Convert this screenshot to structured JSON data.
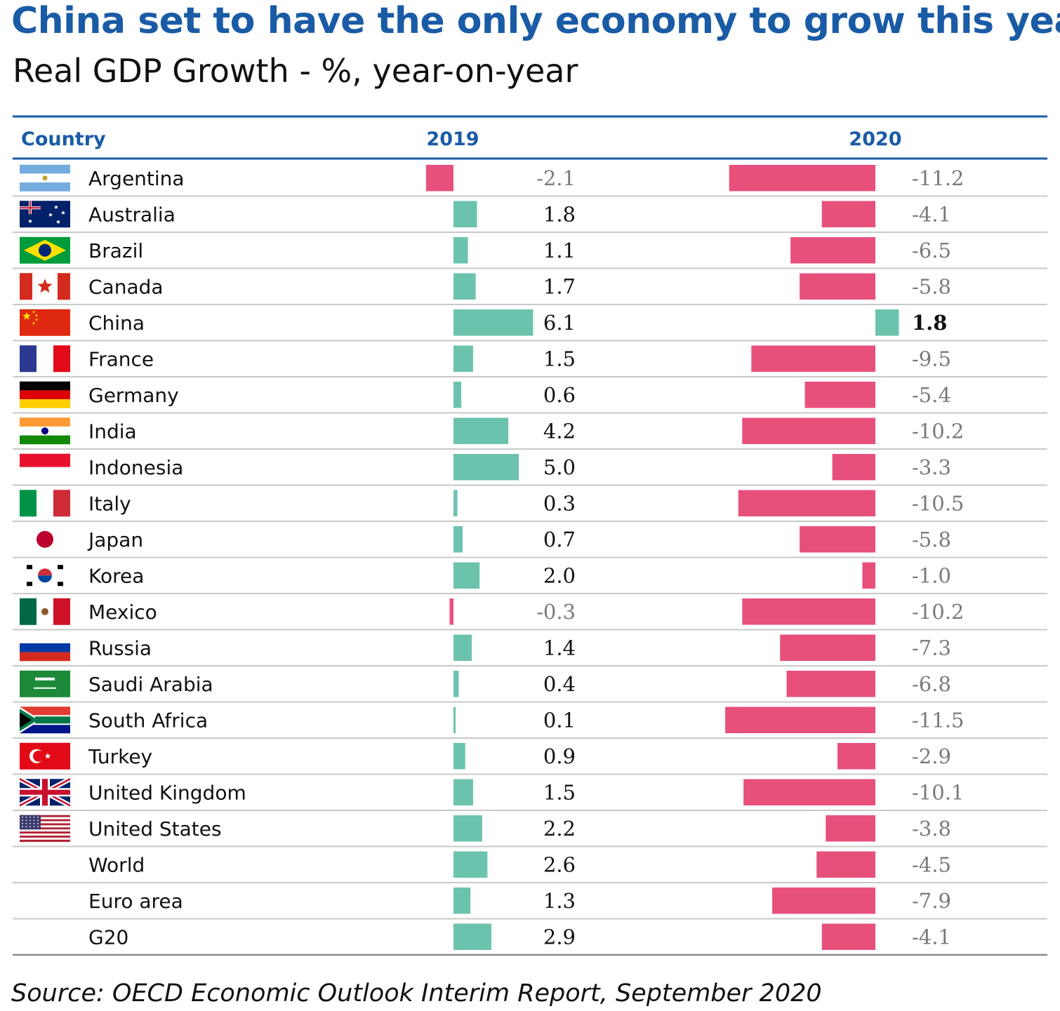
{
  "title": "China set to have the only economy to grow this year",
  "subtitle": "Real GDP Growth - %, year-on-year",
  "source": "Source: OECD Economic Outlook Interim Report, September 2020",
  "colors": {
    "accent": "#1a5ba6",
    "positive_bar": "#6cc3ad",
    "negative_bar": "#e8507c",
    "negative_text": "#7a7a7a",
    "positive_text": "#111111",
    "rule": "#c9c9c9"
  },
  "chart_data": {
    "type": "bar",
    "headers": {
      "country": "Country",
      "y2019": "2019",
      "y2020": "2020"
    },
    "categories": [
      "Argentina",
      "Australia",
      "Brazil",
      "Canada",
      "China",
      "France",
      "Germany",
      "India",
      "Indonesia",
      "Italy",
      "Japan",
      "Korea",
      "Mexico",
      "Russia",
      "Saudi Arabia",
      "South Africa",
      "Turkey",
      "United Kingdom",
      "United States",
      "World",
      "Euro area",
      "G20"
    ],
    "series": [
      {
        "name": "2019",
        "values": [
          -2.1,
          1.8,
          1.1,
          1.7,
          6.1,
          1.5,
          0.6,
          4.2,
          5.0,
          0.3,
          0.7,
          2.0,
          -0.3,
          1.4,
          0.4,
          0.1,
          0.9,
          1.5,
          2.2,
          2.6,
          1.3,
          2.9
        ]
      },
      {
        "name": "2020",
        "values": [
          -11.2,
          -4.1,
          -6.5,
          -5.8,
          1.8,
          -9.5,
          -5.4,
          -10.2,
          -3.3,
          -10.5,
          -5.8,
          -1.0,
          -10.2,
          -7.3,
          -6.8,
          -11.5,
          -2.9,
          -10.1,
          -3.8,
          -4.5,
          -7.9,
          -4.1
        ]
      }
    ],
    "labels_2019": [
      "-2.1",
      "1.8",
      "1.1",
      "1.7",
      "6.1",
      "1.5",
      "0.6",
      "4.2",
      "5.0",
      "0.3",
      "0.7",
      "2.0",
      "-0.3",
      "1.4",
      "0.4",
      "0.1",
      "0.9",
      "1.5",
      "2.2",
      "2.6",
      "1.3",
      "2.9"
    ],
    "labels_2020": [
      "-11.2",
      "-4.1",
      "-6.5",
      "-5.8",
      "1.8",
      "-9.5",
      "-5.4",
      "-10.2",
      "-3.3",
      "-10.5",
      "-5.8",
      "-1.0",
      "-10.2",
      "-7.3",
      "-6.8",
      "-11.5",
      "-2.9",
      "-10.1",
      "-3.8",
      "-4.5",
      "-7.9",
      "-4.1"
    ],
    "flags": [
      "argentina-flag-icon",
      "australia-flag-icon",
      "brazil-flag-icon",
      "canada-flag-icon",
      "china-flag-icon",
      "france-flag-icon",
      "germany-flag-icon",
      "india-flag-icon",
      "indonesia-flag-icon",
      "italy-flag-icon",
      "japan-flag-icon",
      "korea-flag-icon",
      "mexico-flag-icon",
      "russia-flag-icon",
      "saudi-arabia-flag-icon",
      "south-africa-flag-icon",
      "turkey-flag-icon",
      "united-kingdom-flag-icon",
      "united-states-flag-icon",
      "",
      "",
      ""
    ]
  }
}
